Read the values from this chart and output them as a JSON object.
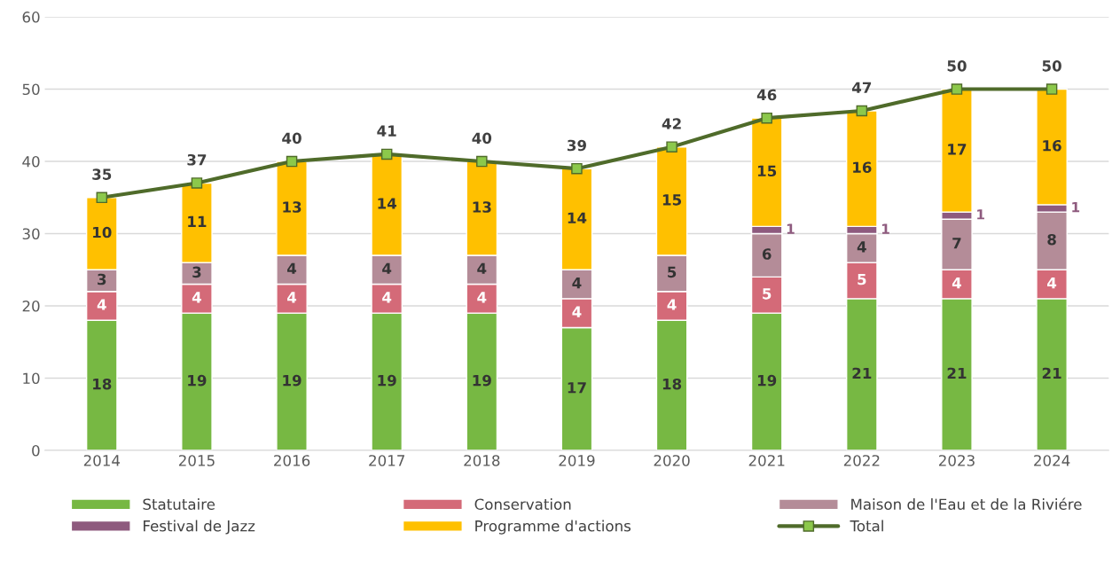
{
  "chart_data": {
    "type": "bar",
    "stacked": true,
    "categories": [
      "2014",
      "2015",
      "2016",
      "2017",
      "2018",
      "2019",
      "2020",
      "2021",
      "2022",
      "2023",
      "2024"
    ],
    "series": [
      {
        "name": "Statutaire",
        "color": "#77b843",
        "values": [
          18,
          19,
          19,
          19,
          19,
          17,
          18,
          19,
          21,
          21,
          21
        ]
      },
      {
        "name": "Conservation",
        "color": "#d46a78",
        "values": [
          4,
          4,
          4,
          4,
          4,
          4,
          4,
          5,
          5,
          4,
          4
        ]
      },
      {
        "name": "Maison de l'Eau et de la Riviére",
        "color": "#b48c98",
        "values": [
          3,
          3,
          4,
          4,
          4,
          4,
          5,
          6,
          4,
          7,
          8
        ]
      },
      {
        "name": "Festival de Jazz",
        "color": "#8e5a7e",
        "values": [
          null,
          null,
          null,
          null,
          null,
          null,
          null,
          1,
          1,
          1,
          1
        ]
      },
      {
        "name": "Programme d'actions",
        "color": "#ffc000",
        "values": [
          10,
          11,
          13,
          14,
          13,
          14,
          15,
          15,
          16,
          17,
          16
        ]
      },
      {
        "name": "Total",
        "type": "line",
        "color": "#4f6b2a",
        "marker": "square",
        "values": [
          35,
          37,
          40,
          41,
          40,
          39,
          42,
          46,
          47,
          50,
          50
        ]
      }
    ],
    "ylim": [
      0,
      60
    ],
    "yticks": [
      0,
      10,
      20,
      30,
      40,
      50,
      60
    ],
    "grid": "y",
    "legend": "bottom",
    "data_labels": true
  }
}
